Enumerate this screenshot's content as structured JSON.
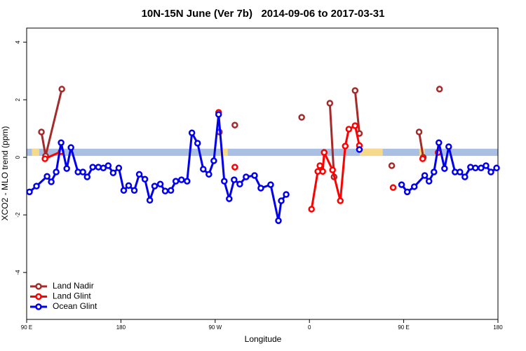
{
  "chart_data": {
    "type": "line",
    "title": "10N-15N June (Ver 7b)   2014-09-06 to 2017-03-31",
    "x_label": "Longitude",
    "y_label": "XCO2 - MLO trend (ppm)",
    "xlim": [
      90,
      540
    ],
    "xticks": [
      {
        "value": 90,
        "label": "90 E"
      },
      180,
      {
        "value": 270,
        "label": "90 W"
      },
      {
        "value": 360,
        "label": "0"
      },
      {
        "value": 450,
        "label": "90 E"
      },
      180
    ],
    "ylim": [
      -5.63,
      4.49
    ],
    "yticks": [
      -4,
      -2,
      0,
      2,
      4
    ],
    "band": {
      "range": [
        0.05,
        0.3
      ],
      "color": "#a9bfe3"
    },
    "highlight_spans": {
      "color": "#f6d98a",
      "ranges": [
        [
          95,
          102
        ],
        [
          275,
          282
        ],
        [
          408,
          430
        ],
        [
          465,
          470
        ]
      ]
    },
    "legend": "bottom-left",
    "series": [
      {
        "name": "Land Nadir",
        "color": "#a52a2a",
        "x": [
          104.1,
          108.1,
          123.6,
          null,
          274.0,
          null,
          288.8,
          null,
          352.6,
          null,
          379.5,
          383.5,
          null,
          403.6,
          407.7,
          null,
          438.6,
          null,
          464.7,
          468.7,
          null,
          484.2
        ],
        "values": [
          0.88,
          0.05,
          2.37,
          null,
          0.88,
          null,
          1.12,
          null,
          1.39,
          null,
          1.88,
          -0.68,
          null,
          2.32,
          0.83,
          null,
          -0.29,
          null,
          0.88,
          0,
          null,
          2.37
        ]
      },
      {
        "name": "Land Glint",
        "color": "#ff0000",
        "x": [
          107.5,
          122.9,
          null,
          273.3,
          null,
          288.8,
          null,
          362.0,
          368.0,
          370.0,
          372.7,
          374.1,
          382.1,
          389.5,
          394.2,
          397.6,
          403.6,
          407.7,
          null,
          439.9,
          null,
          468.1,
          null,
          482.9
        ],
        "values": [
          -0.05,
          0.2,
          null,
          1.56,
          null,
          -0.34,
          null,
          -1.8,
          -0.49,
          -0.29,
          -0.49,
          0.17,
          -0.44,
          -1.51,
          0.39,
          0.98,
          1.1,
          0.41,
          null,
          -1.05,
          null,
          -0.05,
          null,
          0.17
        ]
      },
      {
        "name": "Ocean Glint",
        "color": "#0000ee",
        "x": [
          92.7,
          99.4,
          109.5,
          113.5,
          118.2,
          122.9,
          128.3,
          132.3,
          139.0,
          143.7,
          147.8,
          153.1,
          158.5,
          163.2,
          167.9,
          172.6,
          178.0,
          182.7,
          187.4,
          192.8,
          197.5,
          202.9,
          207.6,
          212.2,
          217.6,
          222.3,
          227.7,
          232.4,
          237.8,
          243.2,
          247.8,
          253.2,
          258.6,
          264.0,
          268.7,
          273.3,
          278.7,
          283.4,
          288.1,
          293.5,
          299.5,
          307.6,
          313.6,
          323.0,
          330.4,
          333.1,
          337.8,
          null,
          407.7,
          null,
          448.0,
          453.4,
          460.1,
          470.1,
          474.2,
          478.9,
          483.6,
          489.0,
          493.0,
          499.0,
          503.7,
          508.4,
          513.8,
          518.5,
          523.9,
          528.6,
          533.3,
          538.7
        ],
        "values": [
          -1.2,
          -1.0,
          -0.66,
          -0.85,
          -0.51,
          0.51,
          -0.39,
          0.34,
          -0.51,
          -0.51,
          -0.68,
          -0.34,
          -0.34,
          -0.37,
          -0.29,
          -0.54,
          -0.37,
          -1.15,
          -0.98,
          -1.15,
          -0.59,
          -0.76,
          -1.49,
          -1.0,
          -0.93,
          -1.17,
          -1.15,
          -0.83,
          -0.78,
          -0.83,
          0.85,
          0.49,
          -0.41,
          -0.59,
          -0.12,
          1.49,
          -0.83,
          -1.44,
          -0.78,
          -0.93,
          -0.68,
          -0.63,
          -1.07,
          -0.95,
          -2.2,
          -1.51,
          -1.29,
          null,
          0.27,
          null,
          -0.95,
          -1.2,
          -1.02,
          -0.63,
          -0.83,
          -0.51,
          0.51,
          -0.39,
          0.37,
          -0.51,
          -0.51,
          -0.68,
          -0.34,
          -0.37,
          -0.37,
          -0.29,
          -0.51,
          -0.37
        ]
      }
    ]
  }
}
